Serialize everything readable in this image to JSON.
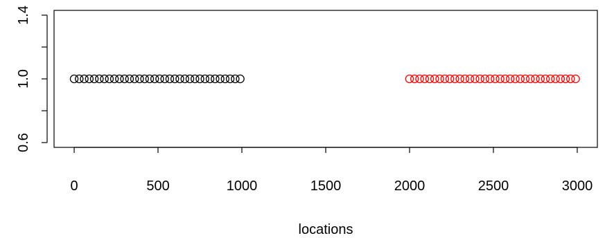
{
  "chart_data": {
    "type": "scatter",
    "title": "",
    "xlabel": "locations",
    "ylabel": "",
    "xlim": [
      -120,
      3120
    ],
    "ylim": [
      0.57,
      1.43
    ],
    "xticks": [
      0,
      500,
      1000,
      1500,
      2000,
      2500,
      3000
    ],
    "xtick_labels": [
      "0",
      "500",
      "1000",
      "1500",
      "2000",
      "2500",
      "3000"
    ],
    "yticks": [
      0.6,
      0.8,
      1.0,
      1.2,
      1.4
    ],
    "ytick_labels": [
      "0.6",
      "",
      "1.0",
      "",
      "1.4"
    ],
    "grid": false,
    "marker": "open-circle",
    "series": [
      {
        "color": "#000000",
        "x": [
          0,
          30,
          60,
          90,
          120,
          150,
          180,
          210,
          240,
          270,
          300,
          330,
          360,
          390,
          420,
          450,
          480,
          510,
          540,
          570,
          600,
          630,
          660,
          690,
          720,
          750,
          780,
          810,
          840,
          870,
          900,
          930,
          960,
          990
        ],
        "y": [
          1,
          1,
          1,
          1,
          1,
          1,
          1,
          1,
          1,
          1,
          1,
          1,
          1,
          1,
          1,
          1,
          1,
          1,
          1,
          1,
          1,
          1,
          1,
          1,
          1,
          1,
          1,
          1,
          1,
          1,
          1,
          1,
          1,
          1
        ]
      },
      {
        "color": "#ff0000",
        "x": [
          2000,
          2030,
          2060,
          2090,
          2120,
          2150,
          2180,
          2210,
          2240,
          2270,
          2300,
          2330,
          2360,
          2390,
          2420,
          2450,
          2480,
          2510,
          2540,
          2570,
          2600,
          2630,
          2660,
          2690,
          2720,
          2750,
          2780,
          2810,
          2840,
          2870,
          2900,
          2930,
          2960,
          2990
        ],
        "y": [
          1,
          1,
          1,
          1,
          1,
          1,
          1,
          1,
          1,
          1,
          1,
          1,
          1,
          1,
          1,
          1,
          1,
          1,
          1,
          1,
          1,
          1,
          1,
          1,
          1,
          1,
          1,
          1,
          1,
          1,
          1,
          1,
          1,
          1
        ]
      }
    ]
  }
}
